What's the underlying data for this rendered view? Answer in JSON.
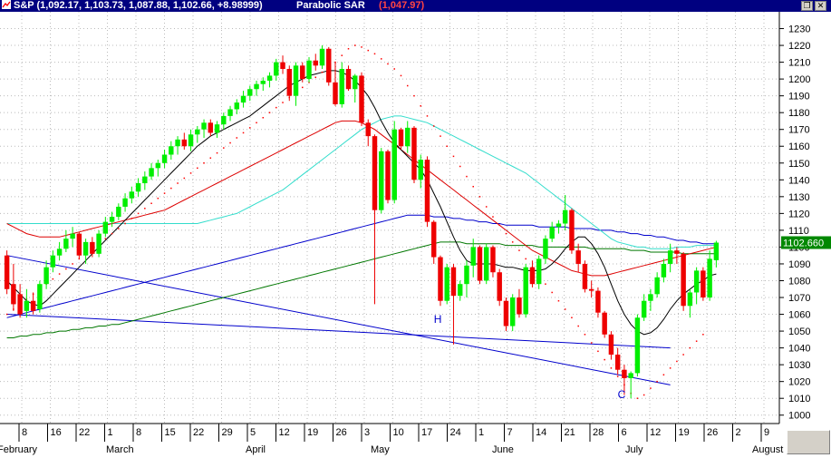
{
  "window": {
    "symbol_line": "S&P (1,092.17, 1,103.73, 1,087.88, 1,102.66, +8.98999)",
    "indicator_label": "Parabolic SAR",
    "indicator_value": "(1,047.97)",
    "restore_icon": "restore-icon",
    "close_icon": "close-icon"
  },
  "colors": {
    "title_bg": "#000080",
    "up_candle": "#00ee00",
    "down_candle": "#ee0000",
    "sar": "#ff0000",
    "ma_short": "#000000",
    "ma_red": "#dd0000",
    "ma_cyan": "#33ddcc",
    "ma_blue": "#0000cc",
    "ma_green": "#007700",
    "trendline": "#0000cc",
    "grid": "#bbbbbb",
    "last_price_bg": "#008800"
  },
  "chart_data": {
    "type": "candlestick",
    "title": "S&P",
    "ylim": [
      995,
      1240
    ],
    "y_ticks": [
      1000,
      1010,
      1020,
      1030,
      1040,
      1050,
      1060,
      1070,
      1080,
      1090,
      1100,
      1110,
      1120,
      1130,
      1140,
      1150,
      1160,
      1170,
      1180,
      1190,
      1200,
      1210,
      1220,
      1230
    ],
    "last_price": "1102.660",
    "x_tick_labels": [
      "8",
      "16",
      "22",
      "1",
      "8",
      "15",
      "22",
      "29",
      "5",
      "12",
      "19",
      "26",
      "3",
      "10",
      "17",
      "24",
      "1",
      "7",
      "14",
      "21",
      "28",
      "6",
      "12",
      "19",
      "26",
      "2",
      "9"
    ],
    "month_labels": [
      "February",
      "March",
      "April",
      "May",
      "June",
      "July",
      "August"
    ],
    "annotations": [
      "H",
      "C"
    ],
    "candles": [
      {
        "o": 1095,
        "h": 1098,
        "l": 1072,
        "c": 1075
      },
      {
        "o": 1078,
        "h": 1090,
        "l": 1062,
        "c": 1066
      },
      {
        "o": 1072,
        "h": 1078,
        "l": 1058,
        "c": 1060
      },
      {
        "o": 1062,
        "h": 1075,
        "l": 1058,
        "c": 1068
      },
      {
        "o": 1068,
        "h": 1073,
        "l": 1060,
        "c": 1062
      },
      {
        "o": 1063,
        "h": 1080,
        "l": 1061,
        "c": 1078
      },
      {
        "o": 1078,
        "h": 1092,
        "l": 1075,
        "c": 1088
      },
      {
        "o": 1088,
        "h": 1098,
        "l": 1085,
        "c": 1095
      },
      {
        "o": 1095,
        "h": 1103,
        "l": 1092,
        "c": 1099
      },
      {
        "o": 1099,
        "h": 1110,
        "l": 1097,
        "c": 1105
      },
      {
        "o": 1105,
        "h": 1112,
        "l": 1100,
        "c": 1108
      },
      {
        "o": 1108,
        "h": 1109,
        "l": 1093,
        "c": 1095
      },
      {
        "o": 1095,
        "h": 1105,
        "l": 1090,
        "c": 1103
      },
      {
        "o": 1103,
        "h": 1106,
        "l": 1094,
        "c": 1096
      },
      {
        "o": 1096,
        "h": 1110,
        "l": 1094,
        "c": 1108
      },
      {
        "o": 1108,
        "h": 1118,
        "l": 1106,
        "c": 1115
      },
      {
        "o": 1115,
        "h": 1121,
        "l": 1112,
        "c": 1118
      },
      {
        "o": 1118,
        "h": 1126,
        "l": 1116,
        "c": 1124
      },
      {
        "o": 1124,
        "h": 1132,
        "l": 1121,
        "c": 1129
      },
      {
        "o": 1129,
        "h": 1136,
        "l": 1126,
        "c": 1133
      },
      {
        "o": 1133,
        "h": 1141,
        "l": 1130,
        "c": 1138
      },
      {
        "o": 1138,
        "h": 1145,
        "l": 1134,
        "c": 1142
      },
      {
        "o": 1142,
        "h": 1150,
        "l": 1140,
        "c": 1147
      },
      {
        "o": 1147,
        "h": 1152,
        "l": 1142,
        "c": 1150
      },
      {
        "o": 1150,
        "h": 1158,
        "l": 1147,
        "c": 1155
      },
      {
        "o": 1155,
        "h": 1163,
        "l": 1152,
        "c": 1160
      },
      {
        "o": 1160,
        "h": 1166,
        "l": 1155,
        "c": 1164
      },
      {
        "o": 1164,
        "h": 1168,
        "l": 1158,
        "c": 1160
      },
      {
        "o": 1160,
        "h": 1170,
        "l": 1157,
        "c": 1167
      },
      {
        "o": 1167,
        "h": 1172,
        "l": 1162,
        "c": 1170
      },
      {
        "o": 1170,
        "h": 1176,
        "l": 1165,
        "c": 1174
      },
      {
        "o": 1174,
        "h": 1176,
        "l": 1166,
        "c": 1168
      },
      {
        "o": 1168,
        "h": 1175,
        "l": 1165,
        "c": 1173
      },
      {
        "o": 1173,
        "h": 1180,
        "l": 1170,
        "c": 1178
      },
      {
        "o": 1178,
        "h": 1184,
        "l": 1175,
        "c": 1182
      },
      {
        "o": 1182,
        "h": 1188,
        "l": 1179,
        "c": 1186
      },
      {
        "o": 1186,
        "h": 1193,
        "l": 1183,
        "c": 1190
      },
      {
        "o": 1190,
        "h": 1196,
        "l": 1187,
        "c": 1194
      },
      {
        "o": 1194,
        "h": 1199,
        "l": 1190,
        "c": 1197
      },
      {
        "o": 1197,
        "h": 1201,
        "l": 1193,
        "c": 1199
      },
      {
        "o": 1199,
        "h": 1204,
        "l": 1195,
        "c": 1202
      },
      {
        "o": 1202,
        "h": 1212,
        "l": 1199,
        "c": 1210
      },
      {
        "o": 1210,
        "h": 1214,
        "l": 1203,
        "c": 1206
      },
      {
        "o": 1206,
        "h": 1208,
        "l": 1187,
        "c": 1190
      },
      {
        "o": 1190,
        "h": 1210,
        "l": 1184,
        "c": 1208
      },
      {
        "o": 1208,
        "h": 1210,
        "l": 1198,
        "c": 1200
      },
      {
        "o": 1200,
        "h": 1213,
        "l": 1198,
        "c": 1211
      },
      {
        "o": 1211,
        "h": 1215,
        "l": 1205,
        "c": 1208
      },
      {
        "o": 1208,
        "h": 1220,
        "l": 1206,
        "c": 1218
      },
      {
        "o": 1218,
        "h": 1219,
        "l": 1196,
        "c": 1198
      },
      {
        "o": 1198,
        "h": 1210,
        "l": 1184,
        "c": 1185
      },
      {
        "o": 1185,
        "h": 1210,
        "l": 1183,
        "c": 1206
      },
      {
        "o": 1206,
        "h": 1208,
        "l": 1193,
        "c": 1194
      },
      {
        "o": 1194,
        "h": 1203,
        "l": 1186,
        "c": 1202
      },
      {
        "o": 1202,
        "h": 1204,
        "l": 1172,
        "c": 1174
      },
      {
        "o": 1174,
        "h": 1176,
        "l": 1160,
        "c": 1166
      },
      {
        "o": 1166,
        "h": 1167,
        "l": 1066,
        "c": 1122
      },
      {
        "o": 1122,
        "h": 1159,
        "l": 1120,
        "c": 1157
      },
      {
        "o": 1157,
        "h": 1158,
        "l": 1126,
        "c": 1128
      },
      {
        "o": 1128,
        "h": 1175,
        "l": 1126,
        "c": 1170
      },
      {
        "o": 1170,
        "h": 1171,
        "l": 1158,
        "c": 1160
      },
      {
        "o": 1160,
        "h": 1175,
        "l": 1156,
        "c": 1171
      },
      {
        "o": 1171,
        "h": 1172,
        "l": 1138,
        "c": 1140
      },
      {
        "o": 1140,
        "h": 1155,
        "l": 1135,
        "c": 1152
      },
      {
        "o": 1152,
        "h": 1154,
        "l": 1112,
        "c": 1115
      },
      {
        "o": 1115,
        "h": 1116,
        "l": 1090,
        "c": 1094
      },
      {
        "o": 1094,
        "h": 1095,
        "l": 1065,
        "c": 1068
      },
      {
        "o": 1068,
        "h": 1090,
        "l": 1066,
        "c": 1088
      },
      {
        "o": 1088,
        "h": 1090,
        "l": 1042,
        "c": 1071
      },
      {
        "o": 1071,
        "h": 1080,
        "l": 1068,
        "c": 1078
      },
      {
        "o": 1078,
        "h": 1092,
        "l": 1070,
        "c": 1089
      },
      {
        "o": 1089,
        "h": 1105,
        "l": 1082,
        "c": 1100
      },
      {
        "o": 1100,
        "h": 1101,
        "l": 1078,
        "c": 1080
      },
      {
        "o": 1080,
        "h": 1102,
        "l": 1078,
        "c": 1100
      },
      {
        "o": 1100,
        "h": 1101,
        "l": 1082,
        "c": 1085
      },
      {
        "o": 1085,
        "h": 1087,
        "l": 1065,
        "c": 1068
      },
      {
        "o": 1068,
        "h": 1070,
        "l": 1050,
        "c": 1053
      },
      {
        "o": 1053,
        "h": 1072,
        "l": 1050,
        "c": 1070
      },
      {
        "o": 1070,
        "h": 1075,
        "l": 1058,
        "c": 1060
      },
      {
        "o": 1060,
        "h": 1090,
        "l": 1058,
        "c": 1088
      },
      {
        "o": 1088,
        "h": 1092,
        "l": 1076,
        "c": 1078
      },
      {
        "o": 1078,
        "h": 1095,
        "l": 1075,
        "c": 1093
      },
      {
        "o": 1093,
        "h": 1107,
        "l": 1090,
        "c": 1105
      },
      {
        "o": 1105,
        "h": 1115,
        "l": 1103,
        "c": 1112
      },
      {
        "o": 1112,
        "h": 1116,
        "l": 1108,
        "c": 1114
      },
      {
        "o": 1114,
        "h": 1131,
        "l": 1110,
        "c": 1122
      },
      {
        "o": 1122,
        "h": 1123,
        "l": 1096,
        "c": 1098
      },
      {
        "o": 1098,
        "h": 1102,
        "l": 1085,
        "c": 1090
      },
      {
        "o": 1090,
        "h": 1092,
        "l": 1073,
        "c": 1075
      },
      {
        "o": 1075,
        "h": 1080,
        "l": 1070,
        "c": 1074
      },
      {
        "o": 1074,
        "h": 1076,
        "l": 1058,
        "c": 1061
      },
      {
        "o": 1061,
        "h": 1062,
        "l": 1046,
        "c": 1048
      },
      {
        "o": 1048,
        "h": 1050,
        "l": 1033,
        "c": 1036
      },
      {
        "o": 1036,
        "h": 1040,
        "l": 1024,
        "c": 1027
      },
      {
        "o": 1027,
        "h": 1030,
        "l": 1012,
        "c": 1022
      },
      {
        "o": 1022,
        "h": 1026,
        "l": 1010,
        "c": 1025
      },
      {
        "o": 1025,
        "h": 1060,
        "l": 1023,
        "c": 1058
      },
      {
        "o": 1058,
        "h": 1072,
        "l": 1056,
        "c": 1068
      },
      {
        "o": 1068,
        "h": 1075,
        "l": 1062,
        "c": 1072
      },
      {
        "o": 1072,
        "h": 1085,
        "l": 1070,
        "c": 1082
      },
      {
        "o": 1082,
        "h": 1093,
        "l": 1079,
        "c": 1090
      },
      {
        "o": 1090,
        "h": 1102,
        "l": 1085,
        "c": 1098
      },
      {
        "o": 1098,
        "h": 1100,
        "l": 1090,
        "c": 1096
      },
      {
        "o": 1096,
        "h": 1097,
        "l": 1062,
        "c": 1065
      },
      {
        "o": 1065,
        "h": 1075,
        "l": 1058,
        "c": 1073
      },
      {
        "o": 1073,
        "h": 1088,
        "l": 1066,
        "c": 1086
      },
      {
        "o": 1086,
        "h": 1088,
        "l": 1068,
        "c": 1070
      },
      {
        "o": 1070,
        "h": 1098,
        "l": 1068,
        "c": 1093
      },
      {
        "o": 1092.17,
        "h": 1103.73,
        "l": 1087.88,
        "c": 1102.66
      }
    ],
    "sar": [
      1060,
      1063,
      1066,
      1069,
      1072,
      1075,
      1078,
      1081,
      1084,
      1087,
      1090,
      1093,
      1096,
      1099,
      1102,
      1105,
      1108,
      1111,
      1114,
      1117,
      1120,
      1123,
      1126,
      1129,
      1132,
      1135,
      1138,
      1141,
      1144,
      1147,
      1150,
      1153,
      1156,
      1159,
      1162,
      1165,
      1168,
      1171,
      1174,
      1177,
      1180,
      1183,
      1186,
      1189,
      1192,
      1195,
      1198,
      1201,
      1204,
      1207,
      1210,
      1214,
      1218,
      1220,
      1219,
      1217,
      1215,
      1212,
      1209,
      1206,
      1202,
      1196,
      1190,
      1184,
      1178,
      1172,
      1166,
      1160,
      1154,
      1148,
      1142,
      1136,
      1130,
      1124,
      1118,
      1113,
      1108,
      1103,
      1098,
      1093,
      1088,
      1083,
      1078,
      1073,
      1068,
      1063,
      1058,
      1053,
      1048,
      1043,
      1038,
      1033,
      1028,
      1023,
      1018,
      1013,
      1010,
      1012,
      1016,
      1020,
      1024,
      1028,
      1032,
      1036,
      1040,
      1044,
      1048
    ],
    "ma_short": [
      1080,
      1076,
      1072,
      1068,
      1066,
      1065,
      1068,
      1072,
      1076,
      1080,
      1084,
      1088,
      1092,
      1096,
      1100,
      1104,
      1108,
      1112,
      1116,
      1120,
      1124,
      1128,
      1132,
      1136,
      1140,
      1144,
      1148,
      1152,
      1156,
      1160,
      1163,
      1166,
      1168,
      1170,
      1172,
      1174,
      1176,
      1178,
      1181,
      1184,
      1187,
      1190,
      1193,
      1196,
      1198,
      1200,
      1202,
      1203,
      1204,
      1205,
      1205,
      1204,
      1202,
      1199,
      1195,
      1190,
      1183,
      1175,
      1168,
      1162,
      1158,
      1154,
      1150,
      1146,
      1140,
      1132,
      1124,
      1115,
      1106,
      1098,
      1092,
      1090,
      1090,
      1090,
      1090,
      1089,
      1088,
      1088,
      1087,
      1086,
      1086,
      1086,
      1087,
      1090,
      1094,
      1099,
      1103,
      1106,
      1106,
      1102,
      1096,
      1088,
      1078,
      1068,
      1060,
      1054,
      1050,
      1048,
      1049,
      1052,
      1057,
      1063,
      1068,
      1072,
      1075,
      1078,
      1080,
      1083,
      1084
    ],
    "ma_red": [
      1114,
      1112,
      1110,
      1108,
      1107,
      1106,
      1106,
      1106,
      1106,
      1107,
      1108,
      1109,
      1110,
      1111,
      1112,
      1113,
      1114,
      1115,
      1116,
      1117,
      1118,
      1119,
      1120,
      1121,
      1122,
      1124,
      1126,
      1128,
      1130,
      1132,
      1134,
      1136,
      1138,
      1140,
      1142,
      1144,
      1146,
      1148,
      1150,
      1152,
      1154,
      1156,
      1158,
      1160,
      1162,
      1164,
      1166,
      1168,
      1170,
      1172,
      1174,
      1175,
      1175,
      1175,
      1174,
      1172,
      1170,
      1167,
      1164,
      1161,
      1158,
      1155,
      1152,
      1149,
      1146,
      1143,
      1140,
      1137,
      1134,
      1131,
      1128,
      1125,
      1122,
      1119,
      1116,
      1113,
      1110,
      1107,
      1104,
      1101,
      1098,
      1096,
      1094,
      1092,
      1090,
      1088,
      1086,
      1085,
      1084,
      1083,
      1083,
      1083,
      1084,
      1085,
      1086,
      1087,
      1088,
      1089,
      1090,
      1091,
      1092,
      1093,
      1094,
      1095,
      1096,
      1097,
      1098,
      1099,
      1100
    ],
    "ma_cyan": [
      1114,
      1114,
      1114,
      1114,
      1114,
      1114,
      1114,
      1114,
      1114,
      1114,
      1114,
      1114,
      1114,
      1114,
      1114,
      1114,
      1114,
      1114,
      1114,
      1114,
      1114,
      1114,
      1114,
      1114,
      1114,
      1114,
      1114,
      1114,
      1114,
      1114,
      1115,
      1116,
      1117,
      1118,
      1119,
      1120,
      1122,
      1124,
      1126,
      1128,
      1130,
      1132,
      1134,
      1137,
      1140,
      1143,
      1146,
      1149,
      1152,
      1155,
      1158,
      1161,
      1164,
      1167,
      1170,
      1172,
      1174,
      1176,
      1177,
      1178,
      1178,
      1177,
      1176,
      1175,
      1174,
      1172,
      1170,
      1168,
      1166,
      1164,
      1162,
      1160,
      1158,
      1156,
      1154,
      1152,
      1150,
      1148,
      1146,
      1144,
      1141,
      1138,
      1135,
      1132,
      1129,
      1126,
      1123,
      1120,
      1117,
      1114,
      1111,
      1108,
      1105,
      1103,
      1102,
      1101,
      1100,
      1100,
      1099,
      1099,
      1099,
      1099,
      1100,
      1100,
      1100,
      1101,
      1101,
      1101,
      1101
    ],
    "ma_blue": [
      1058,
      1059,
      1060,
      1061,
      1062,
      1063,
      1064,
      1065,
      1066,
      1067,
      1068,
      1069,
      1070,
      1071,
      1072,
      1073,
      1074,
      1075,
      1076,
      1077,
      1078,
      1079,
      1080,
      1081,
      1082,
      1083,
      1084,
      1085,
      1086,
      1087,
      1088,
      1089,
      1090,
      1091,
      1092,
      1093,
      1094,
      1095,
      1096,
      1097,
      1098,
      1099,
      1100,
      1101,
      1102,
      1103,
      1104,
      1105,
      1106,
      1107,
      1108,
      1109,
      1110,
      1111,
      1112,
      1113,
      1114,
      1115,
      1116,
      1117,
      1118,
      1119,
      1119,
      1119,
      1119,
      1118,
      1118,
      1118,
      1117,
      1117,
      1116,
      1116,
      1115,
      1115,
      1114,
      1114,
      1113,
      1113,
      1113,
      1113,
      1113,
      1112,
      1112,
      1112,
      1112,
      1112,
      1111,
      1111,
      1111,
      1111,
      1110,
      1110,
      1110,
      1109,
      1109,
      1108,
      1108,
      1107,
      1107,
      1106,
      1106,
      1105,
      1104,
      1104,
      1103,
      1103,
      1102,
      1102,
      1102
    ],
    "ma_green": [
      1046,
      1046,
      1047,
      1047,
      1048,
      1048,
      1049,
      1049,
      1050,
      1050,
      1051,
      1051,
      1052,
      1052,
      1053,
      1053,
      1054,
      1054,
      1055,
      1056,
      1057,
      1058,
      1059,
      1060,
      1061,
      1062,
      1063,
      1064,
      1065,
      1066,
      1067,
      1068,
      1069,
      1070,
      1071,
      1072,
      1073,
      1074,
      1075,
      1076,
      1077,
      1078,
      1079,
      1080,
      1081,
      1082,
      1083,
      1084,
      1085,
      1086,
      1087,
      1088,
      1089,
      1090,
      1091,
      1092,
      1093,
      1094,
      1095,
      1096,
      1097,
      1098,
      1099,
      1100,
      1101,
      1102,
      1103,
      1103,
      1103,
      1103,
      1102,
      1102,
      1102,
      1102,
      1102,
      1102,
      1101,
      1101,
      1101,
      1101,
      1101,
      1100,
      1100,
      1100,
      1100,
      1100,
      1100,
      1100,
      1100,
      1099,
      1099,
      1099,
      1099,
      1099,
      1099,
      1098,
      1098,
      1098,
      1097,
      1097,
      1097,
      1097,
      1097,
      1096,
      1096,
      1096,
      1096,
      1096,
      1096
    ],
    "trendlines": [
      {
        "from": [
          0,
          1095
        ],
        "to": [
          101,
          1018
        ]
      },
      {
        "from": [
          0,
          1060
        ],
        "to": [
          101,
          1040
        ]
      }
    ]
  }
}
